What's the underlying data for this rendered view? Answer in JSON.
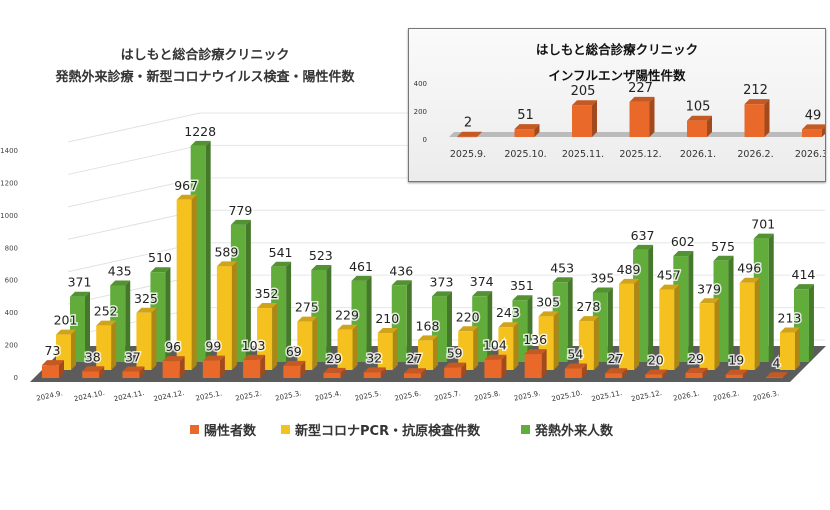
{
  "title_line1": "はしもと総合診療クリニック",
  "title_line2": "発熱外来診療・新型コロナウイルス検査・陽性件数",
  "chart_data": [
    {
      "type": "bar",
      "title": "はしもと総合診療クリニック 発熱外来診療・新型コロナウイルス検査・陽性件数",
      "categories": [
        "2024.9.",
        "2024.10.",
        "2024.11.",
        "2024.12.",
        "2025.1.",
        "2025.2.",
        "2025.3.",
        "2025.4.",
        "2025.5.",
        "2025.6.",
        "2025.7.",
        "2025.8.",
        "2025.9.",
        "2025.10.",
        "2025.11.",
        "2025.12.",
        "2026.1.",
        "2026.2.",
        "2026.3."
      ],
      "yticks": [
        "0",
        "200",
        "400",
        "600",
        "800",
        "1000",
        "1200",
        "1400"
      ],
      "ylim": [
        0,
        1400
      ],
      "grid": true,
      "legend_placement": "bottom",
      "series": [
        {
          "name": "陽性者数",
          "color": "#e8692a",
          "values": [
            73,
            38,
            37,
            96,
            99,
            103,
            69,
            29,
            32,
            27,
            59,
            104,
            136,
            54,
            27,
            20,
            29,
            19,
            4
          ]
        },
        {
          "name": "新型コロナPCR・抗原検査件数",
          "color": "#f5c11e",
          "values": [
            201,
            252,
            325,
            967,
            589,
            352,
            275,
            229,
            210,
            168,
            220,
            243,
            305,
            278,
            489,
            457,
            379,
            496,
            213
          ]
        },
        {
          "name": "発熱外来人数",
          "color": "#62ac3c",
          "values": [
            371,
            435,
            510,
            1228,
            779,
            541,
            523,
            461,
            436,
            373,
            374,
            351,
            453,
            395,
            637,
            602,
            575,
            701,
            414
          ]
        }
      ]
    },
    {
      "type": "bar",
      "title": "はしもと総合診療クリニック インフルエンザ陽性件数",
      "title_line1": "はしもと総合診療クリニック",
      "title_line2": "インフルエンザ陽性件数",
      "categories": [
        "2025.9.",
        "2025.10.",
        "2025.11.",
        "2025.12.",
        "2026.1.",
        "2026.2.",
        "2026.3."
      ],
      "yticks": [
        "0",
        "200",
        "400"
      ],
      "ylim": [
        0,
        400
      ],
      "series": [
        {
          "color": "#e8692a",
          "values": [
            2,
            51,
            205,
            227,
            105,
            212,
            49
          ]
        }
      ]
    }
  ]
}
